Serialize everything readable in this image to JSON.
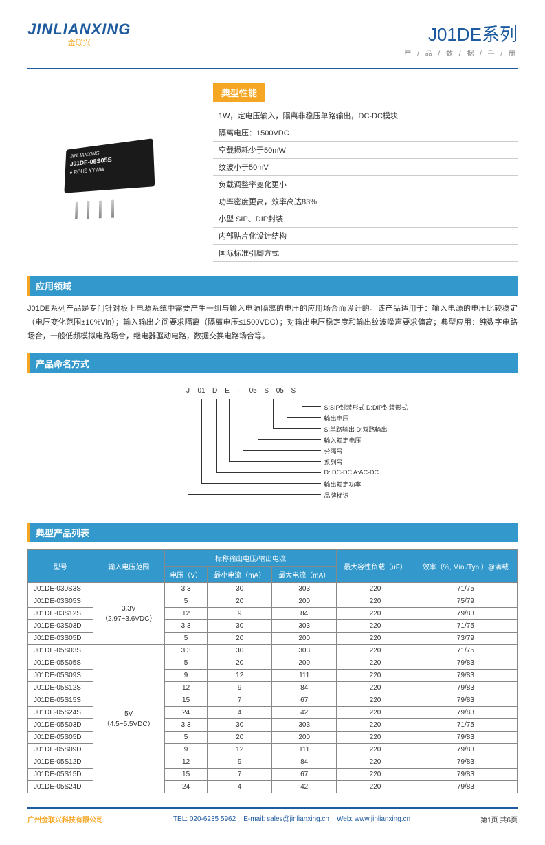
{
  "logo": {
    "main": "JINLIANXING",
    "sub": "金联兴"
  },
  "series": {
    "name": "J01DE系列",
    "sub": "产 / 品 / 数 / 据 / 手 / 册"
  },
  "chip": {
    "brand": "JINLIANXING",
    "model": "J01DE-05S05S",
    "cert": "ROHS YYWW"
  },
  "perf": {
    "title": "典型性能",
    "items": [
      "1W，定电压输入，隔离非稳压单路输出，DC-DC模块",
      "隔离电压：1500VDC",
      "空载损耗少于50mW",
      "纹波小于50mV",
      "负载调整率变化更小",
      "功率密度更高，效率高达83%",
      "小型 SIP、DIP封装",
      "内部贴片化设计结构",
      "国际标准引脚方式"
    ]
  },
  "app": {
    "title": "应用领域",
    "text": "J01DE系列产品是专门针对板上电源系统中需要产生一组与输入电源隔离的电压的应用场合而设计的。该产品适用于：输入电源的电压比较稳定（电压变化范围±10%Vin）；输入输出之间要求隔离（隔离电压≤1500VDC）；对输出电压稳定度和输出纹波噪声要求偏高；典型应用：纯数字电路场合，一般低频模拟电路场合，继电器驱动电路，数据交换电路场合等。"
  },
  "naming": {
    "title": "产品命名方式",
    "code": [
      "J",
      "01",
      "D",
      "E",
      "–",
      "05",
      "S",
      "05",
      "S"
    ],
    "labels": [
      "S:SIP封装形式  D:DIP封装形式",
      "输出电压",
      "S:单路输出  D:双路输出",
      "输入额定电压",
      "分隔号",
      "系列号",
      "D: DC-DC  A:AC-DC",
      "输出额定功率",
      "品牌标识"
    ]
  },
  "table": {
    "title": "典型产品列表",
    "headers": {
      "model": "型号",
      "vin": "输入电压范围",
      "nominal": "标称输出电压/输出电流",
      "voltage": "电压（V）",
      "minI": "最小电流（mA）",
      "maxI": "最大电流（mA）",
      "cap": "最大容性负载（uF）",
      "eff": "效率（%, Min./Typ.）@满载"
    },
    "groups": [
      {
        "vin": "3.3V（2.97~3.6VDC）",
        "rows": [
          [
            "J01DE-030S3S",
            "3.3",
            "30",
            "303",
            "220",
            "71/75"
          ],
          [
            "J01DE-03S05S",
            "5",
            "20",
            "200",
            "220",
            "75/79"
          ],
          [
            "J01DE-03S12S",
            "12",
            "9",
            "84",
            "220",
            "79/83"
          ],
          [
            "J01DE-03S03D",
            "3.3",
            "30",
            "303",
            "220",
            "71/75"
          ],
          [
            "J01DE-03S05D",
            "5",
            "20",
            "200",
            "220",
            "73/79"
          ]
        ]
      },
      {
        "vin": "5V（4.5~5.5VDC）",
        "rows": [
          [
            "J01DE-05S03S",
            "3.3",
            "30",
            "303",
            "220",
            "71/75"
          ],
          [
            "J01DE-05S05S",
            "5",
            "20",
            "200",
            "220",
            "79/83"
          ],
          [
            "J01DE-05S09S",
            "9",
            "12",
            "111",
            "220",
            "79/83"
          ],
          [
            "J01DE-05S12S",
            "12",
            "9",
            "84",
            "220",
            "79/83"
          ],
          [
            "J01DE-05S15S",
            "15",
            "7",
            "67",
            "220",
            "79/83"
          ],
          [
            "J01DE-05S24S",
            "24",
            "4",
            "42",
            "220",
            "79/83"
          ],
          [
            "J01DE-05S03D",
            "3.3",
            "30",
            "303",
            "220",
            "71/75"
          ],
          [
            "J01DE-05S05D",
            "5",
            "20",
            "200",
            "220",
            "79/83"
          ],
          [
            "J01DE-05S09D",
            "9",
            "12",
            "111",
            "220",
            "79/83"
          ],
          [
            "J01DE-05S12D",
            "12",
            "9",
            "84",
            "220",
            "79/83"
          ],
          [
            "J01DE-05S15D",
            "15",
            "7",
            "67",
            "220",
            "79/83"
          ],
          [
            "J01DE-05S24D",
            "24",
            "4",
            "42",
            "220",
            "79/83"
          ]
        ]
      }
    ]
  },
  "footer": {
    "company": "广州金联兴科技有限公司",
    "tel": "TEL: 020-6235 5962",
    "email": "E-mail: sales@jinlianxing.cn",
    "web": "Web: www.jinlianxing.cn",
    "page": "第1页  共6页"
  }
}
